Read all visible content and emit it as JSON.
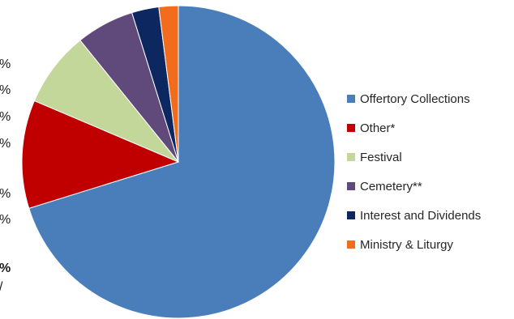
{
  "chart_data": {
    "type": "pie",
    "title": "",
    "start_angle_deg": 0,
    "direction": "clockwise",
    "legend_position": "right",
    "slices": [
      {
        "label": "Offertory Collections",
        "value": 70.2,
        "color": "#4A7EBB"
      },
      {
        "label": "Other*",
        "value": 11.2,
        "color": "#C00000"
      },
      {
        "label": "Festival",
        "value": 7.8,
        "color": "#C4D79B"
      },
      {
        "label": "Cemetery**",
        "value": 6.0,
        "color": "#604A7B"
      },
      {
        "label": "Interest and Dividends",
        "value": 2.8,
        "color": "#0D2760"
      },
      {
        "label": "Ministry & Liturgy",
        "value": 2.0,
        "color": "#F26C1E"
      }
    ]
  },
  "cut_off_labels": [
    {
      "text": "%"
    },
    {
      "text": "%"
    },
    {
      "text": "%"
    },
    {
      "text": "%"
    },
    {
      "text": "%"
    },
    {
      "text": "%"
    },
    {
      "text": "%"
    },
    {
      "text": "/"
    }
  ]
}
